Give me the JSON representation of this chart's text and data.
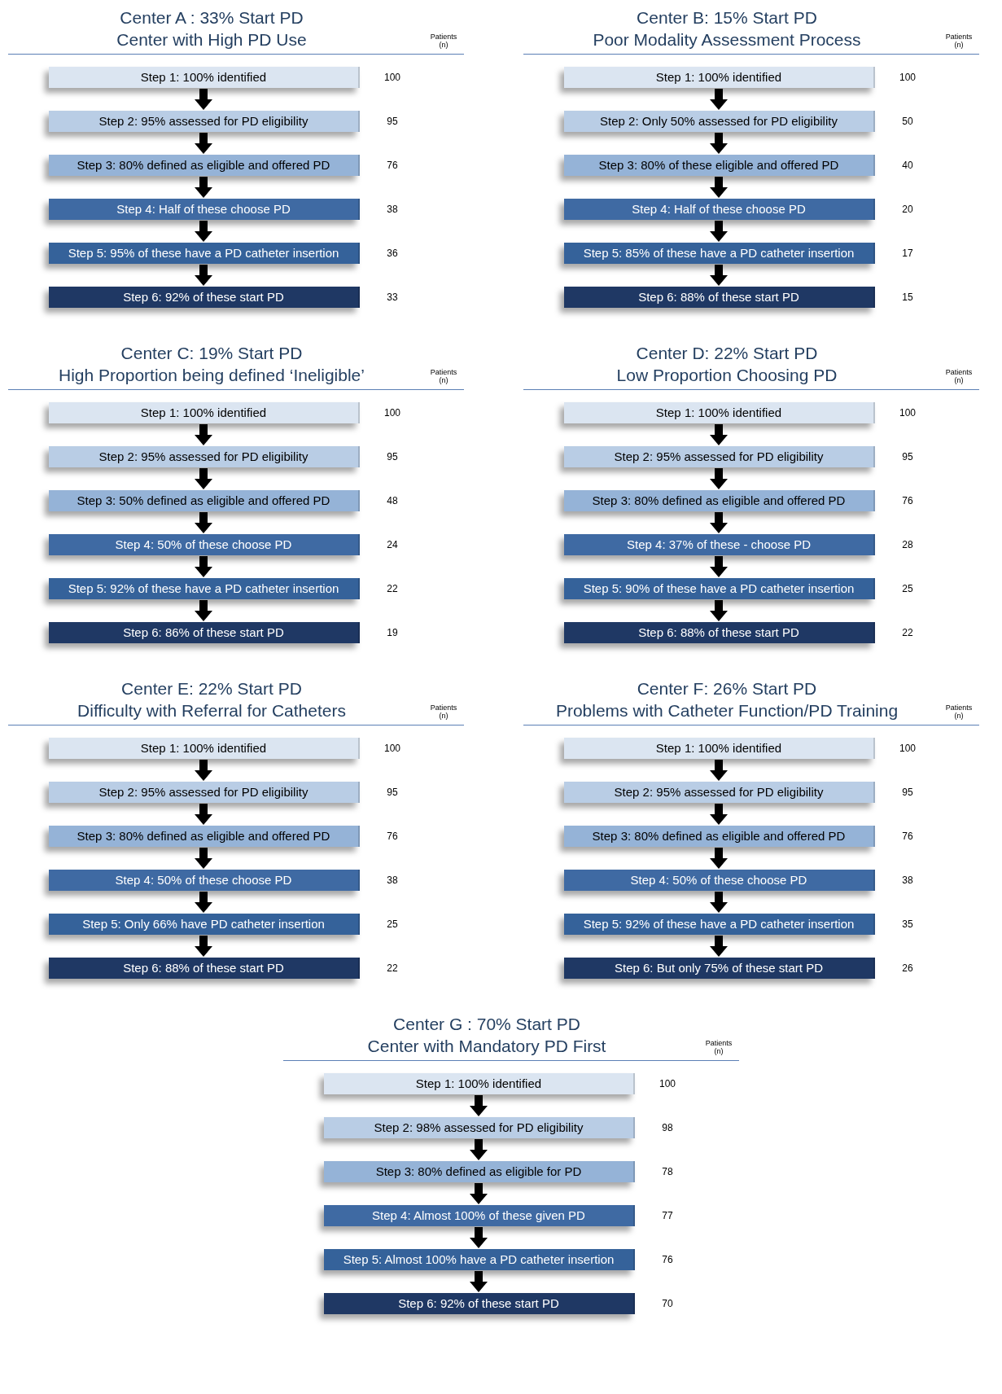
{
  "chart_data": [
    {
      "type": "other",
      "title": "Center A : 33% Start PD",
      "subtitle": "Center with High PD Use",
      "annotations": [
        "Patients (n)"
      ],
      "categories": [
        "Step 1: 100% identified",
        "Step 2: 95% assessed for PD eligibility",
        "Step 3: 80% defined as eligible and offered PD",
        "Step 4: Half of these choose PD",
        "Step 5: 95% of these have a PD catheter insertion",
        "Step 6: 92% of these start PD"
      ],
      "values": [
        100,
        95,
        76,
        38,
        36,
        33
      ],
      "data_labels": true,
      "colors": [
        "#dbe5f1",
        "#b9cde5",
        "#95b3d7",
        "#3f6aa3",
        "#35629a",
        "#1f3864"
      ]
    },
    {
      "type": "other",
      "title": "Center B: 15% Start PD",
      "subtitle": "Poor Modality Assessment Process",
      "annotations": [
        "Patients (n)"
      ],
      "categories": [
        "Step 1: 100% identified",
        "Step 2: Only 50% assessed for PD eligibility",
        "Step 3: 80% of these eligible and offered PD",
        "Step 4: Half of these choose PD",
        "Step 5: 85% of these have a PD catheter insertion",
        "Step 6: 88% of these start PD"
      ],
      "values": [
        100,
        50,
        40,
        20,
        17,
        15
      ],
      "data_labels": true,
      "colors": [
        "#dbe5f1",
        "#b9cde5",
        "#95b3d7",
        "#3f6aa3",
        "#35629a",
        "#1f3864"
      ]
    },
    {
      "type": "other",
      "title": "Center C: 19% Start PD",
      "subtitle": "High Proportion being defined ‘Ineligible’",
      "annotations": [
        "Patients (n)"
      ],
      "categories": [
        "Step 1: 100% identified",
        "Step 2: 95% assessed for PD eligibility",
        "Step 3: 50% defined as eligible and offered PD",
        "Step 4: 50% of these choose PD",
        "Step 5: 92% of these have a PD catheter insertion",
        "Step 6: 86% of these start PD"
      ],
      "values": [
        100,
        95,
        48,
        24,
        22,
        19
      ],
      "data_labels": true,
      "colors": [
        "#dbe5f1",
        "#b9cde5",
        "#95b3d7",
        "#3f6aa3",
        "#35629a",
        "#1f3864"
      ]
    },
    {
      "type": "other",
      "title": "Center D: 22% Start PD",
      "subtitle": "Low Proportion Choosing PD",
      "annotations": [
        "Patients (n)"
      ],
      "categories": [
        "Step 1: 100% identified",
        "Step 2: 95% assessed for PD eligibility",
        "Step 3: 80% defined as eligible and offered PD",
        "Step 4: 37% of these - choose PD",
        "Step 5: 90% of these have a PD catheter insertion",
        "Step 6: 88% of these start PD"
      ],
      "values": [
        100,
        95,
        76,
        28,
        25,
        22
      ],
      "data_labels": true,
      "colors": [
        "#dbe5f1",
        "#b9cde5",
        "#95b3d7",
        "#3f6aa3",
        "#35629a",
        "#1f3864"
      ]
    },
    {
      "type": "other",
      "title": "Center E: 22% Start PD",
      "subtitle": "Difficulty with Referral for Catheters",
      "annotations": [
        "Patients (n)"
      ],
      "categories": [
        "Step 1: 100% identified",
        "Step 2: 95% assessed for PD eligibility",
        "Step 3: 80% defined as eligible and offered PD",
        "Step 4: 50% of these choose PD",
        "Step 5: Only 66% have PD catheter insertion",
        "Step 6: 88% of these start PD"
      ],
      "values": [
        100,
        95,
        76,
        38,
        25,
        22
      ],
      "data_labels": true,
      "colors": [
        "#dbe5f1",
        "#b9cde5",
        "#95b3d7",
        "#3f6aa3",
        "#35629a",
        "#1f3864"
      ]
    },
    {
      "type": "other",
      "title": "Center F: 26% Start PD",
      "subtitle": "Problems with Catheter Function/PD Training",
      "annotations": [
        "Patients (n)"
      ],
      "categories": [
        "Step 1: 100% identified",
        "Step 2: 95% assessed for PD eligibility",
        "Step 3: 80% defined as eligible and offered PD",
        "Step 4: 50% of these choose PD",
        "Step 5: 92% of these have a PD catheter insertion",
        "Step 6: But only 75% of these start PD"
      ],
      "values": [
        100,
        95,
        76,
        38,
        35,
        26
      ],
      "data_labels": true,
      "colors": [
        "#dbe5f1",
        "#b9cde5",
        "#95b3d7",
        "#3f6aa3",
        "#35629a",
        "#1f3864"
      ]
    },
    {
      "type": "other",
      "title": "Center G : 70% Start PD",
      "subtitle": "Center with Mandatory PD First",
      "annotations": [
        "Patients (n)"
      ],
      "categories": [
        "Step 1: 100% identified",
        "Step 2: 98% assessed for PD eligibility",
        "Step 3: 80% defined as eligible for PD",
        "Step 4: Almost 100% of these given PD",
        "Step 5: Almost 100% have a PD catheter insertion",
        "Step 6: 92% of these start PD"
      ],
      "values": [
        100,
        98,
        78,
        77,
        76,
        70
      ],
      "data_labels": true,
      "colors": [
        "#dbe5f1",
        "#b9cde5",
        "#95b3d7",
        "#3f6aa3",
        "#35629a",
        "#1f3864"
      ]
    }
  ]
}
